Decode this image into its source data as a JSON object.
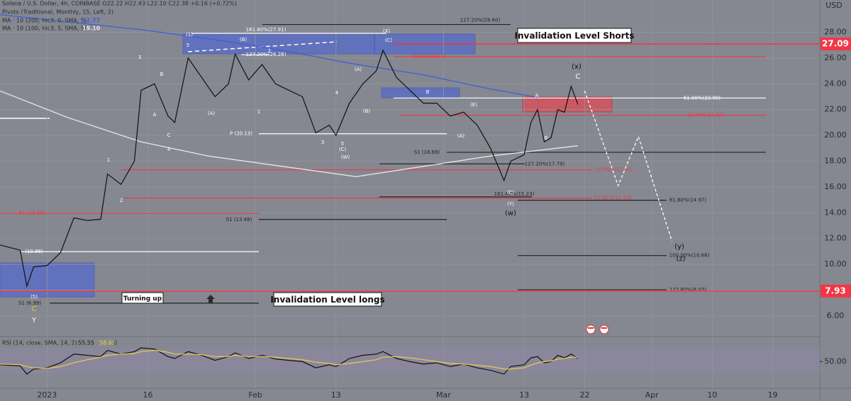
{
  "chart_data": [
    {
      "type": "line",
      "header": [
        "Solana / U.S. Dollar, 4h, COINBASE  O22.22 H22.43 L22.10 C22.38 +0.16 (+0.72%)",
        "Pivots (Traditional, Monthly, 15, Left, 2)"
      ],
      "currency": "USD",
      "xlim": [
        "2022-12-25",
        "2023-04-26"
      ],
      "ylim": [
        4.4,
        30.5
      ],
      "grid": true,
      "yticks": [
        {
          "value": 28,
          "label": "28.00"
        },
        {
          "value": 26,
          "label": "26.00"
        },
        {
          "value": 24,
          "label": "24.00"
        },
        {
          "value": 22,
          "label": "22.00"
        },
        {
          "value": 20,
          "label": "20.00"
        },
        {
          "value": 18,
          "label": "18.00"
        },
        {
          "value": 16,
          "label": "16.00"
        },
        {
          "value": 14,
          "label": "14.00"
        },
        {
          "value": 12,
          "label": "12.00"
        },
        {
          "value": 10,
          "label": "10.00"
        },
        {
          "value": 8,
          "label": "8.00"
        },
        {
          "value": 6,
          "label": "6.00"
        }
      ],
      "xticks": [
        {
          "value": "2023-01-01",
          "label": "2023"
        },
        {
          "value": "2023-01-16",
          "label": "16"
        },
        {
          "value": "2023-02-01",
          "label": "Feb"
        },
        {
          "value": "2023-02-13",
          "label": "13"
        },
        {
          "value": "2023-03-01",
          "label": "Mar"
        },
        {
          "value": "2023-03-13",
          "label": "13"
        },
        {
          "value": "2023-03-22",
          "label": "22"
        },
        {
          "value": "2023-04-01",
          "label": "Apr"
        },
        {
          "value": "2023-04-10",
          "label": "10"
        },
        {
          "value": "2023-04-19",
          "label": "19"
        }
      ],
      "x": [
        "2022-12-25",
        "2022-12-28",
        "2022-12-29",
        "2022-12-30",
        "2023-01-01",
        "2023-01-03",
        "2023-01-05",
        "2023-01-07",
        "2023-01-09",
        "2023-01-10",
        "2023-01-12",
        "2023-01-14",
        "2023-01-15",
        "2023-01-17",
        "2023-01-19",
        "2023-01-20",
        "2023-01-22",
        "2023-01-24",
        "2023-01-26",
        "2023-01-28",
        "2023-01-29",
        "2023-01-31",
        "2023-02-02",
        "2023-02-04",
        "2023-02-06",
        "2023-02-08",
        "2023-02-10",
        "2023-02-12",
        "2023-02-13",
        "2023-02-15",
        "2023-02-17",
        "2023-02-19",
        "2023-02-20",
        "2023-02-22",
        "2023-02-24",
        "2023-02-26",
        "2023-02-28",
        "2023-03-02",
        "2023-03-04",
        "2023-03-06",
        "2023-03-08",
        "2023-03-10",
        "2023-03-11",
        "2023-03-13",
        "2023-03-14",
        "2023-03-15",
        "2023-03-16",
        "2023-03-17",
        "2023-03-18",
        "2023-03-19",
        "2023-03-20",
        "2023-03-21"
      ],
      "series": [
        {
          "color": "#111111",
          "values": [
            11.5,
            11.1,
            8.3,
            9.8,
            9.9,
            10.9,
            13.6,
            13.4,
            13.5,
            17.0,
            16.2,
            18.0,
            23.5,
            24.0,
            21.5,
            21.0,
            26.0,
            24.5,
            23.0,
            24.0,
            26.3,
            24.3,
            25.5,
            24.0,
            23.5,
            23.0,
            20.2,
            20.8,
            20.0,
            22.5,
            24.0,
            25.0,
            26.6,
            24.5,
            23.5,
            22.5,
            22.5,
            21.5,
            21.8,
            20.8,
            19.0,
            16.5,
            18.0,
            18.5,
            21.0,
            22.0,
            19.5,
            19.8,
            22.0,
            21.8,
            23.8,
            22.4
          ]
        }
      ],
      "overlays": [
        {
          "name": "MA · 10 (200, hlc3, 0, SMA, 5)",
          "last": "22.77",
          "color": "#3f5fd6",
          "x": [
            "2022-12-25",
            "2023-01-04",
            "2023-01-15",
            "2023-01-25",
            "2023-02-05",
            "2023-02-15",
            "2023-02-26",
            "2023-03-08",
            "2023-03-15"
          ],
          "values": [
            29.37,
            28.8,
            28.2,
            27.5,
            26.6,
            25.6,
            24.7,
            23.6,
            22.95
          ]
        },
        {
          "name": "MA · 10 (100, hlc3, 5, SMA, 5)",
          "last": "19.10",
          "color": "#e6e6e6",
          "x": [
            "2022-12-25",
            "2023-01-04",
            "2023-01-15",
            "2023-01-25",
            "2023-02-05",
            "2023-02-16",
            "2023-02-26",
            "2023-03-08",
            "2023-03-21"
          ],
          "values": [
            23.45,
            21.4,
            19.5,
            18.4,
            17.6,
            16.8,
            17.6,
            18.4,
            19.2
          ]
        },
        {
          "color": "#ffffff",
          "dashed": true,
          "x": [
            "2023-03-22",
            "2023-03-27",
            "2023-03-30",
            "2023-04-04"
          ],
          "values": [
            23.45,
            16.1,
            19.9,
            11.8
          ]
        }
      ],
      "levels": [
        {
          "label": "127.20%(28.60)",
          "value": 28.6,
          "color": "#222222"
        },
        {
          "label": "161.80%(27.91)",
          "value": 27.91,
          "color": "#ffffff"
        },
        {
          "value": 27.09,
          "color": "#f23645",
          "axis_box": true
        },
        {
          "label": "61.80%(26.1)",
          "value": 26.1,
          "color": "#f23645"
        },
        {
          "label": "127.20%(26.26)",
          "value": 26.26,
          "color": "#ffffff"
        },
        {
          "label": "61.80%(22.90)",
          "value": 22.9,
          "color": "#ffffff"
        },
        {
          "label": "50.00%(21.56)",
          "value": 21.56,
          "color": "#f23645"
        },
        {
          "label": "P (20.13)",
          "value": 20.13,
          "color": "#ffffff"
        },
        {
          "label": "S1 (18.69)",
          "value": 18.69,
          "color": "#222222"
        },
        {
          "label": "127.20%(17.79)",
          "value": 17.79,
          "color": "#222222"
        },
        {
          "label": "50.00%(17.33)",
          "value": 17.33,
          "color": "#f23645"
        },
        {
          "label": "161.80%(15.23)",
          "value": 15.23,
          "color": "#222222"
        },
        {
          "label": "61.80%(15.14)",
          "value": 15.14,
          "color": "#f23645"
        },
        {
          "label": "61.80%(14.97)",
          "value": 14.97,
          "color": "#222222"
        },
        {
          "label": "R1 (13.95)",
          "value": 13.95,
          "color": "#f23645"
        },
        {
          "label": "S1 (13.48)",
          "value": 13.48,
          "color": "#222222"
        },
        {
          "label": "(10.98)",
          "value": 10.98,
          "color": "#ffffff"
        },
        {
          "label": "100.00%(10.68)",
          "value": 10.68,
          "color": "#222222"
        },
        {
          "label": "123.60%(8.03)",
          "value": 8.03,
          "color": "#222222"
        },
        {
          "value": 7.93,
          "color": "#f23645",
          "axis_box": true
        },
        {
          "label": "S1 (6.99)",
          "value": 6.99,
          "color": "#222222"
        }
      ],
      "annotations": [
        {
          "text": "(1)"
        },
        {
          "text": "5"
        },
        {
          "text": "3"
        },
        {
          "text": "B"
        },
        {
          "text": "A"
        },
        {
          "text": "C"
        },
        {
          "text": "4"
        },
        {
          "text": "1"
        },
        {
          "text": "2"
        },
        {
          "text": "(B)"
        },
        {
          "text": "2"
        },
        {
          "text": "(A)"
        },
        {
          "text": "1"
        },
        {
          "text": "(A)"
        },
        {
          "text": "4"
        },
        {
          "text": "(B)"
        },
        {
          "text": "3"
        },
        {
          "text": "5"
        },
        {
          "text": "(C)"
        },
        {
          "text": "(W)"
        },
        {
          "text": "(X)"
        },
        {
          "text": "(C)"
        },
        {
          "text": "B"
        },
        {
          "text": "(E)"
        },
        {
          "text": "(A)"
        },
        {
          "text": "(C)"
        },
        {
          "text": "(Y)"
        },
        {
          "text": "(w)"
        },
        {
          "text": "(x)"
        },
        {
          "text": "C"
        },
        {
          "text": "A"
        },
        {
          "text": "B"
        },
        {
          "text": "(y)"
        },
        {
          "text": "(z)"
        },
        {
          "text": "C",
          "color": "#f5d000"
        },
        {
          "text": "Y"
        },
        {
          "text": "(5)"
        }
      ],
      "notes": [
        "Invalidation Level Shorts",
        "Invalidation Level longs",
        "Turning up"
      ]
    },
    {
      "type": "line",
      "header": [
        "RSI (14, close, SMA, 14, 2)",
        "55.55",
        "58.69",
        "0"
      ],
      "ylim": [
        5,
        89
      ],
      "yticks": [
        {
          "value": 50,
          "label": "50.00"
        }
      ],
      "x": [
        "2022-12-25",
        "2022-12-28",
        "2022-12-29",
        "2022-12-30",
        "2023-01-01",
        "2023-01-03",
        "2023-01-05",
        "2023-01-07",
        "2023-01-09",
        "2023-01-10",
        "2023-01-12",
        "2023-01-14",
        "2023-01-15",
        "2023-01-17",
        "2023-01-19",
        "2023-01-20",
        "2023-01-22",
        "2023-01-24",
        "2023-01-26",
        "2023-01-28",
        "2023-01-29",
        "2023-01-31",
        "2023-02-02",
        "2023-02-04",
        "2023-02-06",
        "2023-02-08",
        "2023-02-10",
        "2023-02-12",
        "2023-02-13",
        "2023-02-15",
        "2023-02-17",
        "2023-02-19",
        "2023-02-20",
        "2023-02-22",
        "2023-02-24",
        "2023-02-26",
        "2023-02-28",
        "2023-03-02",
        "2023-03-04",
        "2023-03-06",
        "2023-03-08",
        "2023-03-10",
        "2023-03-11",
        "2023-03-13",
        "2023-03-14",
        "2023-03-15",
        "2023-03-16",
        "2023-03-17",
        "2023-03-18",
        "2023-03-19",
        "2023-03-20",
        "2023-03-21"
      ],
      "series": [
        {
          "color": "#111111",
          "values": [
            45,
            43,
            30,
            38,
            40,
            48,
            62,
            60,
            58,
            68,
            62,
            66,
            72,
            70,
            58,
            55,
            66,
            60,
            52,
            58,
            64,
            55,
            60,
            54,
            52,
            50,
            40,
            45,
            42,
            55,
            60,
            62,
            66,
            55,
            50,
            46,
            48,
            42,
            46,
            40,
            36,
            30,
            42,
            45,
            56,
            58,
            48,
            50,
            60,
            56,
            62,
            55
          ]
        },
        {
          "color": "#e8d04a",
          "values": [
            46,
            45,
            42,
            40,
            39,
            42,
            48,
            53,
            57,
            60,
            62,
            63,
            66,
            68,
            65,
            62,
            62,
            61,
            58,
            58,
            60,
            58,
            58,
            57,
            55,
            53,
            49,
            47,
            45,
            47,
            50,
            53,
            57,
            58,
            56,
            53,
            50,
            47,
            46,
            44,
            42,
            38,
            38,
            40,
            44,
            48,
            50,
            51,
            54,
            55,
            57,
            57
          ]
        }
      ]
    }
  ]
}
